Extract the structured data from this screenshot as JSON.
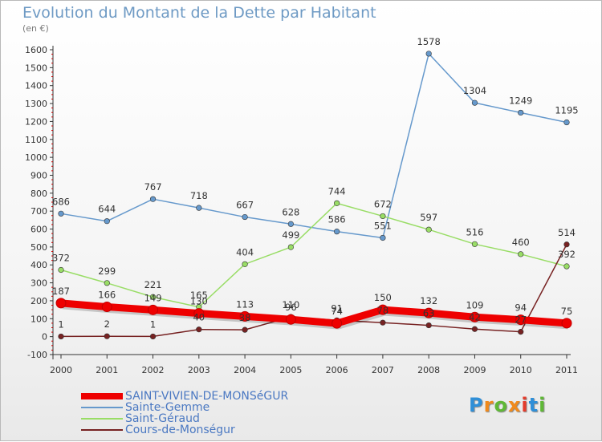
{
  "header": {
    "title": "Evolution du Montant de la Dette par Habitant",
    "subtitle": "(en €)"
  },
  "logo": {
    "text": "Proxiti",
    "colors": [
      "#2f8fd8",
      "#f08a1c",
      "#5fb836",
      "#f08a1c",
      "#e43b2b",
      "#2f8fd8",
      "#5fb836"
    ]
  },
  "chart_data": {
    "type": "line",
    "title": "Evolution du Montant de la Dette par Habitant",
    "subtitle": "(en €)",
    "xlabel": "",
    "ylabel": "",
    "x": [
      "2000",
      "2001",
      "2002",
      "2003",
      "2004",
      "2005",
      "2006",
      "2007",
      "2008",
      "2009",
      "2010",
      "2011"
    ],
    "ylim": [
      -100,
      1600
    ],
    "yticks": [
      -100,
      0,
      100,
      200,
      300,
      400,
      500,
      600,
      700,
      800,
      900,
      1000,
      1100,
      1200,
      1300,
      1400,
      1500,
      1600
    ],
    "grid": false,
    "legend": "bottom-left",
    "series": [
      {
        "name": "SAINT-VIVIEN-DE-MONSéGUR",
        "color": "#ee0000",
        "values": [
          187,
          166,
          149,
          130,
          113,
          96,
          74,
          150,
          132,
          109,
          94,
          75
        ]
      },
      {
        "name": "Sainte-Gemme",
        "color": "#6699cc",
        "values": [
          686,
          644,
          767,
          718,
          667,
          628,
          586,
          551,
          1578,
          1304,
          1249,
          1195
        ]
      },
      {
        "name": "Saint-Géraud",
        "color": "#99dd66",
        "values": [
          372,
          299,
          221,
          165,
          404,
          499,
          744,
          672,
          597,
          516,
          460,
          392
        ]
      },
      {
        "name": "Cours-de-Monségur",
        "color": "#772222",
        "values": [
          1,
          2,
          1,
          40,
          38,
          110,
          91,
          78,
          63,
          42,
          27,
          514
        ]
      }
    ]
  }
}
